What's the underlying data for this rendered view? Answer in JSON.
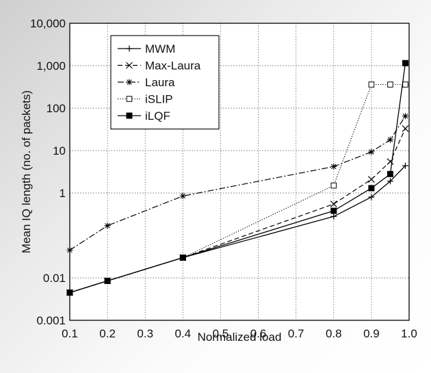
{
  "chart_data": {
    "type": "line",
    "title": "",
    "xlabel": "Normalized load",
    "ylabel": "Mean IQ length (no. of packets)",
    "xlim": [
      0.1,
      1.0
    ],
    "ylim": [
      0.001,
      10000
    ],
    "yscale": "log",
    "grid": true,
    "legend_position": "top-left",
    "x_ticks": [
      0.1,
      0.2,
      0.3,
      0.4,
      0.5,
      0.6,
      0.7,
      0.8,
      0.9,
      1.0
    ],
    "x_tick_labels": [
      "0.1",
      "0.2",
      "0.3",
      "0.4",
      "0.5",
      "0.6",
      "0.7",
      "0.8",
      "0.9",
      "1.0"
    ],
    "y_ticks": [
      0.001,
      0.01,
      1,
      10,
      100,
      1000,
      10000
    ],
    "y_tick_labels": [
      "0.001",
      "0.01",
      "1",
      "10",
      "100",
      "1,000",
      "10,000"
    ],
    "series": [
      {
        "name": "MWM",
        "line_style": "solid",
        "marker": "plus",
        "x": [
          0.1,
          0.2,
          0.4,
          0.8,
          0.9,
          0.95,
          0.99
        ],
        "y": [
          0.0045,
          0.0085,
          0.03,
          0.28,
          0.8,
          1.9,
          4.4
        ]
      },
      {
        "name": "Max-Laura",
        "line_style": "dashed",
        "marker": "x",
        "x": [
          0.1,
          0.2,
          0.4,
          0.8,
          0.9,
          0.95,
          0.99
        ],
        "y": [
          0.0045,
          0.0085,
          0.03,
          0.55,
          2.1,
          5.5,
          33
        ]
      },
      {
        "name": "Laura",
        "line_style": "dashdot",
        "marker": "asterisk",
        "x": [
          0.1,
          0.2,
          0.4,
          0.8,
          0.9,
          0.95,
          0.99
        ],
        "y": [
          0.045,
          0.17,
          0.85,
          4.2,
          9.3,
          18,
          65
        ]
      },
      {
        "name": "iSLIP",
        "line_style": "dotted",
        "marker": "square-open",
        "x": [
          0.1,
          0.2,
          0.4,
          0.8,
          0.9,
          0.95,
          0.99
        ],
        "y": [
          0.0045,
          0.0085,
          0.03,
          1.5,
          360,
          360,
          360
        ]
      },
      {
        "name": "iLQF",
        "line_style": "solid",
        "marker": "square-filled",
        "x": [
          0.1,
          0.2,
          0.4,
          0.8,
          0.9,
          0.95,
          0.99
        ],
        "y": [
          0.0045,
          0.0085,
          0.03,
          0.38,
          1.3,
          2.8,
          1150
        ]
      }
    ]
  }
}
